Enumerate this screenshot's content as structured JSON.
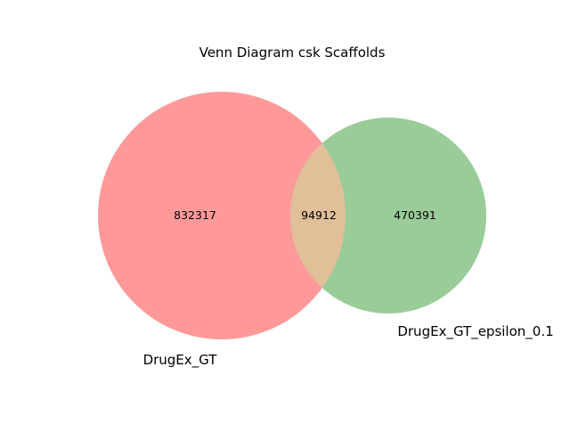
{
  "chart_data": {
    "type": "venn",
    "title": "Venn Diagram csk Scaffolds",
    "sets": [
      {
        "name": "DrugEx_GT",
        "color": "#ff9999",
        "only_count": "832317"
      },
      {
        "name": "DrugEx_GT_epsilon_0.1",
        "color": "#99cc99",
        "only_count": "470391"
      }
    ],
    "intersection": {
      "count": "94912",
      "color": "#e0bf99"
    }
  }
}
